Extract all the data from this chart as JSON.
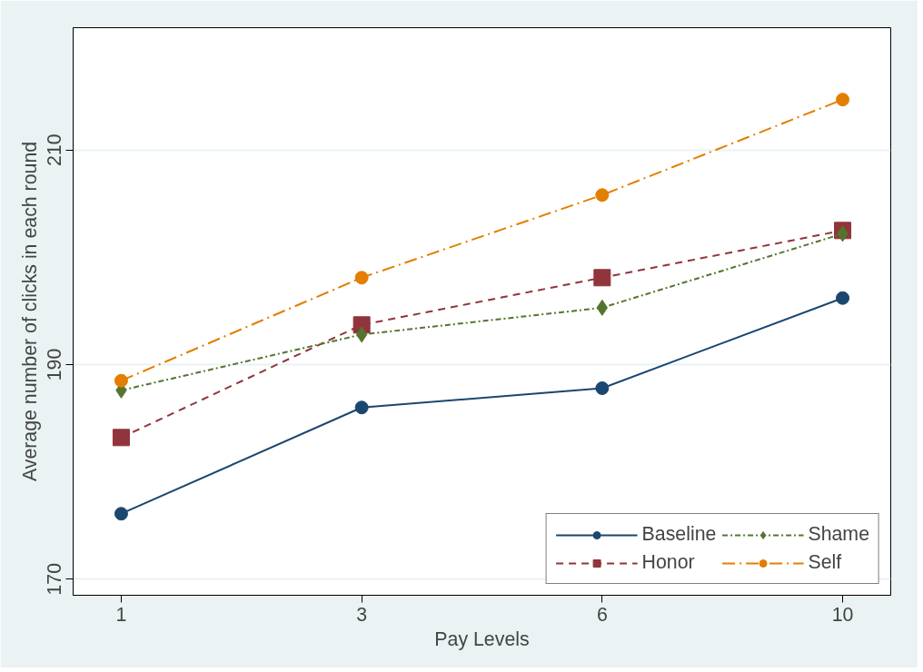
{
  "chart_data": {
    "type": "line",
    "xlabel": "Pay Levels",
    "ylabel": "Average number of clicks in each round",
    "categories": [
      "1",
      "3",
      "6",
      "10"
    ],
    "series": [
      {
        "name": "Baseline",
        "color": "#1a476f",
        "values": [
          176.1,
          186.0,
          187.8,
          196.2
        ],
        "marker": "circle",
        "line_style": "solid"
      },
      {
        "name": "Honor",
        "color": "#90353b",
        "values": [
          183.2,
          193.7,
          198.1,
          202.5
        ],
        "marker": "square",
        "line_style": "dashed"
      },
      {
        "name": "Shame",
        "color": "#55752f",
        "values": [
          187.6,
          192.8,
          195.3,
          202.2
        ],
        "marker": "diamond",
        "line_style": "dotted"
      },
      {
        "name": "Self",
        "color": "#e37e00",
        "values": [
          188.5,
          198.1,
          205.8,
          214.7
        ],
        "marker": "circle",
        "line_style": "dashdot"
      }
    ],
    "ylim": [
      168.5,
      221.4
    ],
    "yticks": [
      170,
      190,
      210
    ],
    "grid": "y",
    "legend": "bottom right"
  }
}
